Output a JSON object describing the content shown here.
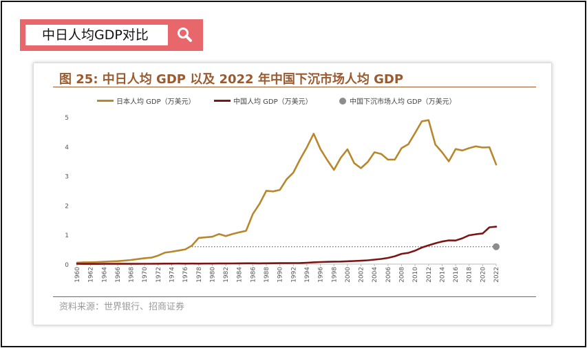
{
  "search": {
    "query": "中日人均GDP对比"
  },
  "chart_header": {
    "title": "图 25:  中日人均 GDP 以及 2022 年中国下沉市场人均 GDP"
  },
  "source": "资料来源：世界银行、招商证券",
  "colors": {
    "japan": "#b8862b",
    "china": "#7b1515",
    "lower_tier": "#8c8c8c",
    "title": "#9a5a2f",
    "search_bg": "#e8676a"
  },
  "chart_data": {
    "type": "line",
    "title": "图 25:  中日人均 GDP 以及 2022 年中国下沉市场人均 GDP",
    "xlabel": "",
    "ylabel": "",
    "ylim": [
      0,
      5
    ],
    "yticks": [
      0,
      1,
      2,
      3,
      4,
      5
    ],
    "xticks": [
      "1960",
      "1962",
      "1964",
      "1966",
      "1968",
      "1970",
      "1972",
      "1974",
      "1976",
      "1978",
      "1980",
      "1982",
      "1984",
      "1986",
      "1988",
      "1990",
      "1992",
      "1994",
      "1996",
      "1998",
      "2000",
      "2002",
      "2004",
      "2006",
      "2008",
      "2010",
      "2012",
      "2014",
      "2016",
      "2018",
      "2020",
      "2022"
    ],
    "legend_position": "top",
    "series": [
      {
        "name": "日本人均 GDP（万美元）",
        "color": "#b8862b",
        "x": [
          1960,
          1961,
          1962,
          1963,
          1964,
          1965,
          1966,
          1967,
          1968,
          1969,
          1970,
          1971,
          1972,
          1973,
          1974,
          1975,
          1976,
          1977,
          1978,
          1979,
          1980,
          1981,
          1982,
          1983,
          1984,
          1985,
          1986,
          1987,
          1988,
          1989,
          1990,
          1991,
          1992,
          1993,
          1994,
          1995,
          1996,
          1997,
          1998,
          1999,
          2000,
          2001,
          2002,
          2003,
          2004,
          2005,
          2006,
          2007,
          2008,
          2009,
          2010,
          2011,
          2012,
          2013,
          2014,
          2015,
          2016,
          2017,
          2018,
          2019,
          2020,
          2021,
          2022
        ],
        "values": [
          0.05,
          0.06,
          0.06,
          0.07,
          0.08,
          0.09,
          0.1,
          0.12,
          0.14,
          0.17,
          0.2,
          0.22,
          0.29,
          0.39,
          0.42,
          0.46,
          0.5,
          0.63,
          0.89,
          0.91,
          0.93,
          1.02,
          0.95,
          1.02,
          1.08,
          1.13,
          1.7,
          2.05,
          2.49,
          2.47,
          2.52,
          2.88,
          3.11,
          3.56,
          3.97,
          4.43,
          3.91,
          3.54,
          3.2,
          3.61,
          3.9,
          3.43,
          3.26,
          3.47,
          3.8,
          3.74,
          3.55,
          3.55,
          3.94,
          4.07,
          4.45,
          4.85,
          4.89,
          4.06,
          3.8,
          3.49,
          3.91,
          3.86,
          3.94,
          4.0,
          3.96,
          3.97,
          3.38
        ]
      },
      {
        "name": "中国人均 GDP（万美元）",
        "color": "#7b1515",
        "x": [
          1960,
          1961,
          1962,
          1963,
          1964,
          1965,
          1966,
          1967,
          1968,
          1969,
          1970,
          1971,
          1972,
          1973,
          1974,
          1975,
          1976,
          1977,
          1978,
          1979,
          1980,
          1981,
          1982,
          1983,
          1984,
          1985,
          1986,
          1987,
          1988,
          1989,
          1990,
          1991,
          1992,
          1993,
          1994,
          1995,
          1996,
          1997,
          1998,
          1999,
          2000,
          2001,
          2002,
          2003,
          2004,
          2005,
          2006,
          2007,
          2008,
          2009,
          2010,
          2011,
          2012,
          2013,
          2014,
          2015,
          2016,
          2017,
          2018,
          2019,
          2020,
          2021,
          2022
        ],
        "values": [
          0.009,
          0.008,
          0.007,
          0.007,
          0.009,
          0.01,
          0.01,
          0.009,
          0.009,
          0.01,
          0.011,
          0.012,
          0.013,
          0.016,
          0.016,
          0.018,
          0.017,
          0.019,
          0.016,
          0.018,
          0.019,
          0.02,
          0.02,
          0.023,
          0.026,
          0.029,
          0.028,
          0.025,
          0.028,
          0.031,
          0.032,
          0.033,
          0.036,
          0.038,
          0.047,
          0.061,
          0.071,
          0.078,
          0.083,
          0.087,
          0.096,
          0.105,
          0.114,
          0.129,
          0.151,
          0.175,
          0.21,
          0.266,
          0.348,
          0.381,
          0.455,
          0.562,
          0.635,
          0.707,
          0.767,
          0.805,
          0.801,
          0.877,
          0.978,
          1.014,
          1.041,
          1.25,
          1.27
        ]
      },
      {
        "name": "中国下沉市场人均 GDP（万美元）",
        "color": "#8c8c8c",
        "x": [
          2022
        ],
        "values": [
          0.59
        ],
        "reference_line_from": 1977
      }
    ]
  }
}
